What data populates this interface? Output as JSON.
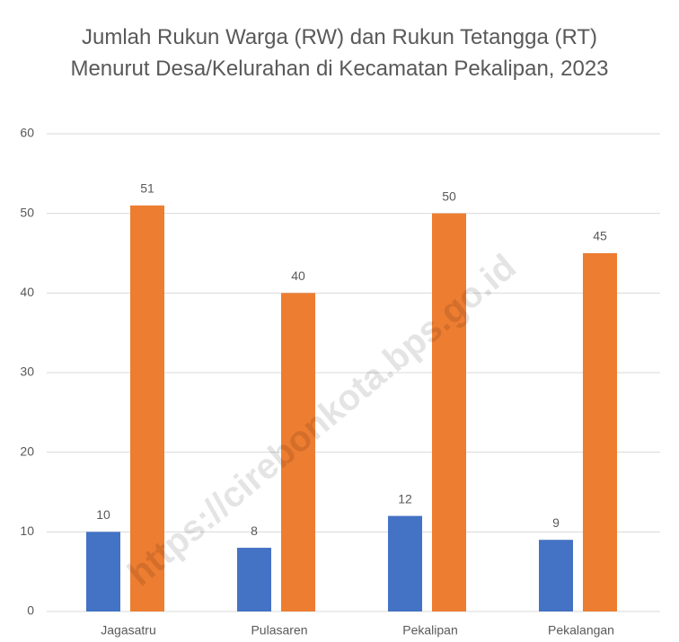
{
  "chart_data": {
    "type": "bar",
    "title": "Jumlah Rukun Warga (RW) dan Rukun Tetangga (RT) Menurut Desa/Kelurahan di Kecamatan Pekalipan, 2023",
    "categories": [
      "Jagasatru",
      "Pulasaren",
      "Pekalipan",
      "Pekalangan"
    ],
    "series": [
      {
        "color": "#4472c4",
        "values": [
          10,
          8,
          12,
          9
        ]
      },
      {
        "color": "#ed7d31",
        "values": [
          51,
          40,
          50,
          45
        ]
      }
    ],
    "ylim": [
      0,
      60
    ],
    "yticks": [
      0,
      10,
      20,
      30,
      40,
      50,
      60
    ],
    "grid": true,
    "watermark": "https://cirebonkota.bps.go.id"
  }
}
